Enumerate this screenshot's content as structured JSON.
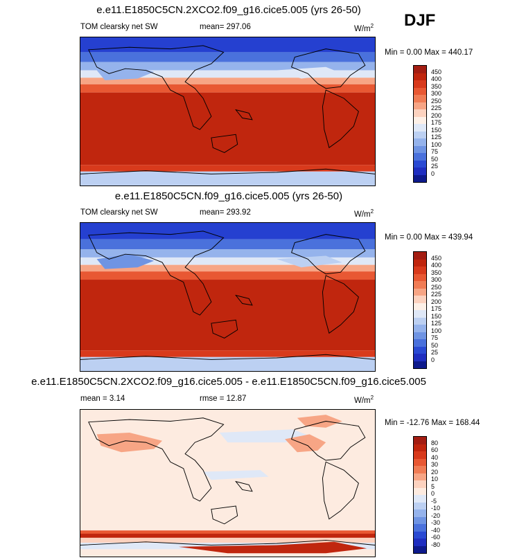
{
  "season": "DJF",
  "panels": [
    {
      "title": "e.e11.E1850C5CN.2XCO2.f09_g16.cice5.005 (yrs 26-50)",
      "left_label": "TOM clearsky net SW",
      "stat_label": "mean= 297.06",
      "units": "W/m",
      "units_exp": "2",
      "minmax": "Min =   0.00 Max = 440.17",
      "levels": [
        "450",
        "400",
        "350",
        "300",
        "250",
        "225",
        "200",
        "175",
        "150",
        "125",
        "100",
        "75",
        "50",
        "25",
        "0"
      ],
      "colors": [
        "#a31d12",
        "#c0260e",
        "#d83a1c",
        "#e85833",
        "#f07c55",
        "#f7a585",
        "#fcd2bf",
        "#fdf0e7",
        "#dfe8f7",
        "#bcd0f2",
        "#95b3ec",
        "#6f94e3",
        "#4a71dc",
        "#2a4ad3",
        "#1f2ec0",
        "#0e1a8c"
      ]
    },
    {
      "title": "e.e11.E1850C5CN.f09_g16.cice5.005 (yrs 26-50)",
      "left_label": "TOM clearsky net SW",
      "stat_label": "mean= 293.92",
      "units": "W/m",
      "units_exp": "2",
      "minmax": "Min =   0.00 Max = 439.94",
      "levels": [
        "450",
        "400",
        "350",
        "300",
        "250",
        "225",
        "200",
        "175",
        "150",
        "125",
        "100",
        "75",
        "50",
        "25",
        "0"
      ],
      "colors": [
        "#a31d12",
        "#c0260e",
        "#d83a1c",
        "#e85833",
        "#f07c55",
        "#f7a585",
        "#fcd2bf",
        "#fdf0e7",
        "#dfe8f7",
        "#bcd0f2",
        "#95b3ec",
        "#6f94e3",
        "#4a71dc",
        "#2a4ad3",
        "#1f2ec0",
        "#0e1a8c"
      ]
    },
    {
      "title": "e.e11.E1850C5CN.2XCO2.f09_g16.cice5.005 - e.e11.E1850C5CN.f09_g16.cice5.005",
      "left_label": "mean =   3.14",
      "stat_label": "rmse =  12.87",
      "units": "W/m",
      "units_exp": "2",
      "minmax": "Min = -12.76 Max = 168.44",
      "levels": [
        "80",
        "60",
        "40",
        "30",
        "20",
        "10",
        "5",
        "0",
        "-5",
        "-10",
        "-20",
        "-30",
        "-40",
        "-60",
        "-80"
      ],
      "colors": [
        "#a31d12",
        "#c0260e",
        "#d83a1c",
        "#e85833",
        "#f07c55",
        "#f7a585",
        "#fcd2bf",
        "#fdebe0",
        "#dfe8f7",
        "#bcd0f2",
        "#95b3ec",
        "#6f94e3",
        "#4a71dc",
        "#2a4ad3",
        "#1f2ec0",
        "#0e1a8c"
      ]
    }
  ]
}
